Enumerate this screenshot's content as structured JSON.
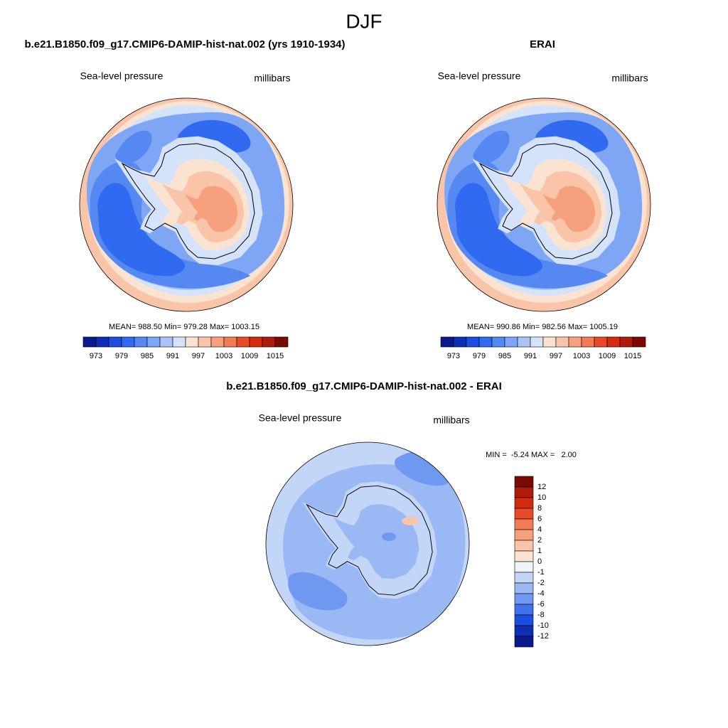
{
  "title": "DJF",
  "panels": [
    {
      "title": "b.e21.B1850.f09_g17.CMIP6-DAMIP-hist-nat.002 (yrs 1910-1934)",
      "left_label": "Sea-level pressure",
      "right_label": "millibars",
      "stats": "MEAN= 988.50  Min= 979.28  Max= 1003.15"
    },
    {
      "title": "ERAI",
      "left_label": "Sea-level pressure",
      "right_label": "millibars",
      "stats": "MEAN= 990.86  Min= 982.56  Max= 1005.19"
    },
    {
      "title": "b.e21.B1850.f09_g17.CMIP6-DAMIP-hist-nat.002 - ERAI",
      "left_label": "Sea-level pressure",
      "right_label": "millibars",
      "stats": "MIN =  -5.24 MAX =   2.00"
    }
  ],
  "colorbar": {
    "colors": [
      "#0a1a8c",
      "#0d2fb5",
      "#1a4ee0",
      "#2f6af0",
      "#5588f0",
      "#7fa6f5",
      "#aac4f7",
      "#d4e2fa",
      "#fbe3d2",
      "#f9c4a8",
      "#f7a07e",
      "#f27a55",
      "#e84a28",
      "#d42a10",
      "#b01a08",
      "#7a0a04"
    ],
    "labels": [
      973,
      979,
      985,
      991,
      997,
      1003,
      1009,
      1015
    ]
  },
  "diff_colorbar": {
    "colors": [
      "#7a0a04",
      "#b01a08",
      "#d42a10",
      "#e84a28",
      "#f27a55",
      "#f7a07e",
      "#f9c4a8",
      "#fbe3d2",
      "#eef3fb",
      "#c4d6f8",
      "#9ab8f4",
      "#6f98f0",
      "#3f72ec",
      "#1a4ee0",
      "#0d2fb5",
      "#0a1a8c"
    ],
    "labels": [
      12,
      10,
      8,
      6,
      4,
      2,
      1,
      0,
      -1,
      -2,
      -4,
      -6,
      -8,
      -10,
      -12
    ]
  }
}
